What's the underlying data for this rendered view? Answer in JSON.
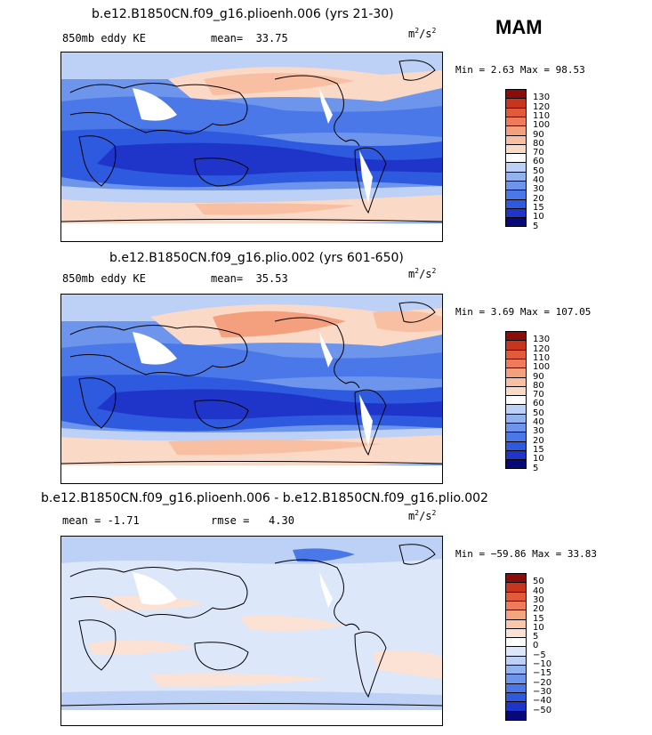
{
  "season": "MAM",
  "palette_abs": [
    "#08087a",
    "#1f34c8",
    "#2e5ae0",
    "#4a78e8",
    "#6d95ec",
    "#93b2f0",
    "#bdd0f5",
    "#ffffff",
    "#fbd9c7",
    "#f8bfa2",
    "#f4a07f",
    "#ef7b5c",
    "#e25a3c",
    "#c9341f",
    "#8d0b0b"
  ],
  "palette_diff": [
    "#08087a",
    "#1f34c8",
    "#2e5ae0",
    "#4a78e8",
    "#6d95ec",
    "#93b2f0",
    "#bdd0f5",
    "#dde7fa",
    "#ffffff",
    "#fbe2d4",
    "#f8c7ac",
    "#f4a580",
    "#ef7b5c",
    "#e25a3c",
    "#c9341f",
    "#8d0b0b"
  ],
  "panels": [
    {
      "title": "b.e12.B1850CN.f09_g16.plioenh.006 (yrs 21-30)",
      "left_label": "850mb eddy KE",
      "stat_label": "mean=",
      "stat_value": "33.75",
      "units_base": "m",
      "units_exp": "2",
      "units_den": "/s",
      "units_exp2": "2",
      "minmax": "Min =    2.63 Max =   98.53",
      "colorbar_labels": [
        "130",
        "120",
        "110",
        "100",
        "90",
        "80",
        "70",
        "60",
        "50",
        "40",
        "30",
        "20",
        "15",
        "10",
        "5"
      ]
    },
    {
      "title": "b.e12.B1850CN.f09_g16.plio.002 (yrs 601-650)",
      "left_label": "850mb eddy KE",
      "stat_label": "mean=",
      "stat_value": "35.53",
      "units_base": "m",
      "units_exp": "2",
      "units_den": "/s",
      "units_exp2": "2",
      "minmax": "Min =    3.69 Max = 107.05",
      "colorbar_labels": [
        "130",
        "120",
        "110",
        "100",
        "90",
        "80",
        "70",
        "60",
        "50",
        "40",
        "30",
        "20",
        "15",
        "10",
        "5"
      ]
    },
    {
      "title": "b.e12.B1850CN.f09_g16.plioenh.006 - b.e12.B1850CN.f09_g16.plio.002",
      "left_label": "mean =  -1.71",
      "stat_label": "rmse =",
      "stat_value": "4.30",
      "units_base": "m",
      "units_exp": "2",
      "units_den": "/s",
      "units_exp2": "2",
      "minmax": "Min = −59.86 Max =   33.83",
      "colorbar_labels": [
        "50",
        "40",
        "30",
        "20",
        "15",
        "10",
        "5",
        "0",
        "−5",
        "−10",
        "−15",
        "−20",
        "−30",
        "−40",
        "−50"
      ]
    }
  ]
}
